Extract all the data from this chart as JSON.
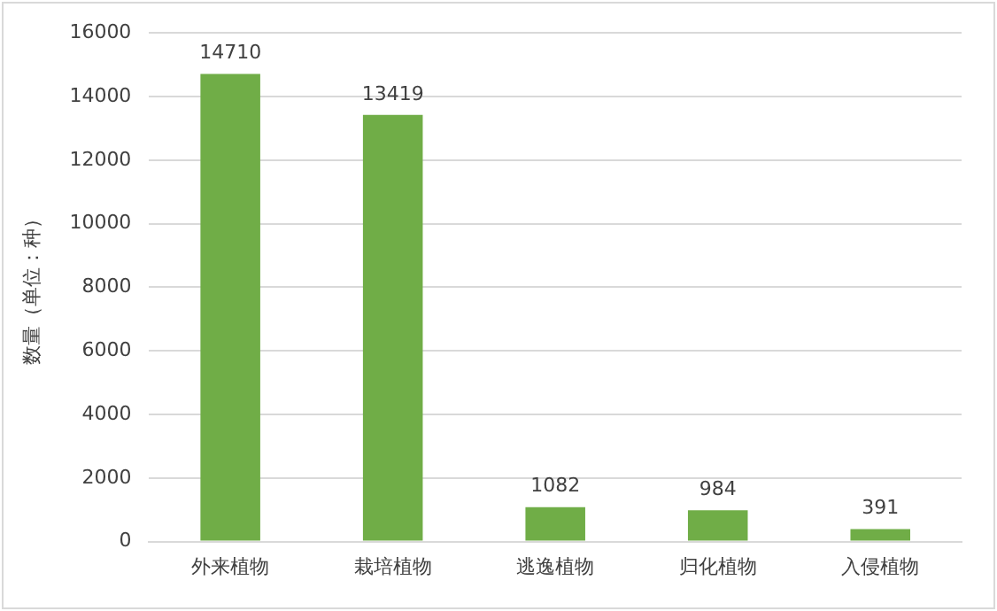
{
  "chart_data": {
    "type": "bar",
    "ylabel": "数量（单位：种）",
    "categories": [
      "外来植物",
      "栽培植物",
      "逃逸植物",
      "归化植物",
      "入侵植物"
    ],
    "values": [
      14710,
      13419,
      1082,
      984,
      391
    ],
    "color": "#70ad47",
    "ylim": [
      0,
      16000
    ],
    "yticks": [
      0,
      2000,
      4000,
      6000,
      8000,
      10000,
      12000,
      14000,
      16000
    ],
    "grid": "y",
    "data_labels": true,
    "legend": false
  }
}
